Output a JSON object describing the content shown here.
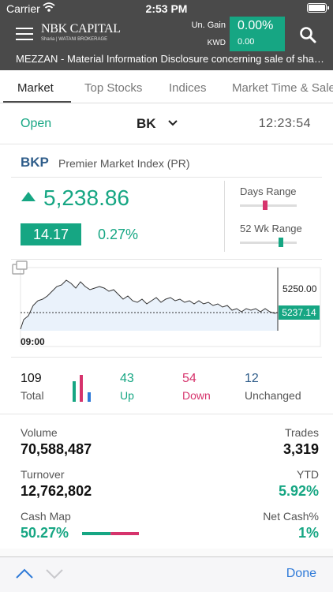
{
  "status_bar": {
    "carrier": "Carrier",
    "time": "2:53 PM"
  },
  "header": {
    "logo_text": "NBK CAPITAL",
    "logo_subtext": "Sharia | WATANI BROKERAGE",
    "gain_label": "Un. Gain",
    "gain_percent": "0.00%",
    "currency_label": "KWD",
    "gain_value": "0.00",
    "news_ticker": "MEZZAN - Material Information Disclosure concerning sale of shares"
  },
  "tabs": [
    "Market",
    "Top Stocks",
    "Indices",
    "Market Time & Sales"
  ],
  "market_status": {
    "state": "Open",
    "exchange": "BK",
    "time": "12:23:54"
  },
  "index": {
    "code": "BKP",
    "name": "Premier Market Index (PR)",
    "last": "5,238.86",
    "change": "14.17",
    "change_pct": "0.27%",
    "days_range_label": "Days Range",
    "wk52_range_label": "52 Wk Range",
    "days_range_position": 0.45,
    "wk52_range_position": 0.72
  },
  "intraday_chart": {
    "high_label": "5250.00",
    "last_label": "5237.14",
    "start_time": "09:00"
  },
  "breadth": {
    "total": "109",
    "total_label": "Total",
    "up": "43",
    "up_label": "Up",
    "down": "54",
    "down_label": "Down",
    "unchanged": "12",
    "unchanged_label": "Unchanged"
  },
  "stats": {
    "volume_label": "Volume",
    "volume": "70,588,487",
    "trades_label": "Trades",
    "trades": "3,319",
    "turnover_label": "Turnover",
    "turnover": "12,762,802",
    "ytd_label": "YTD",
    "ytd": "5.92%",
    "cash_map_label": "Cash Map",
    "cash_map": "50.27%",
    "net_cash_label": "Net Cash%",
    "net_cash": "1%"
  },
  "keyboard_toolbar": {
    "done_label": "Done"
  },
  "colors": {
    "header_bg": "#4a4a4a",
    "accent_green": "#16a683",
    "down_red": "#d6336c",
    "index_blue": "#2f5d8a",
    "link_blue": "#2f7ad8"
  }
}
